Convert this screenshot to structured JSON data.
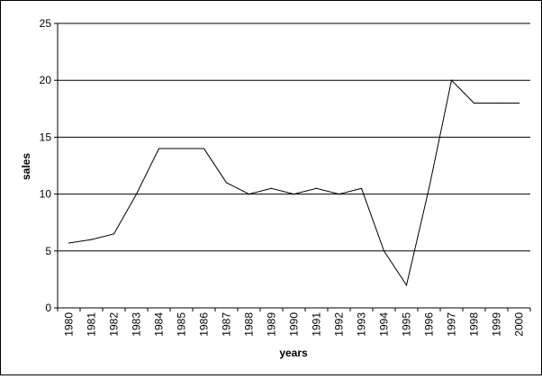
{
  "chart_data": {
    "type": "line",
    "title": "",
    "xlabel": "years",
    "ylabel": "sales",
    "ylim": [
      0,
      25
    ],
    "yticks": [
      0,
      5,
      10,
      15,
      20,
      25
    ],
    "grid": "horizontal major gridlines",
    "legend": "none",
    "categories": [
      "1980",
      "1981",
      "1982",
      "1983",
      "1984",
      "1985",
      "1986",
      "1987",
      "1988",
      "1989",
      "1990",
      "1991",
      "1992",
      "1993",
      "1994",
      "1995",
      "1996",
      "1997",
      "1998",
      "1999",
      "2000"
    ],
    "series": [
      {
        "values": [
          5.7,
          6.0,
          6.5,
          10.0,
          14.0,
          14.0,
          14.0,
          11.0,
          10.0,
          10.5,
          10.0,
          10.5,
          10.0,
          10.5,
          5.0,
          2.0,
          10.5,
          20.0,
          18.0,
          18.0,
          18.0
        ],
        "color": "#000000"
      }
    ]
  }
}
